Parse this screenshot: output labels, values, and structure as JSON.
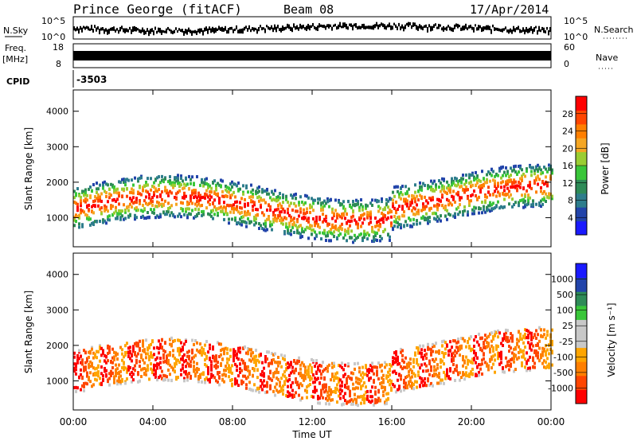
{
  "header": {
    "radar": "Prince George (fitACF)",
    "beam": "Beam 08",
    "date": "17/Apr/2014"
  },
  "summary_panels": {
    "nsky_label": "N.Sky",
    "nsky_ticks": [
      "10^5",
      "10^0"
    ],
    "nsearch_label": "N.Search",
    "nsearch_ticks": [
      "10^5",
      "10^0"
    ],
    "freq_label_1": "Freq.",
    "freq_label_2": "[MHz]",
    "freq_ticks": [
      "18",
      "8"
    ],
    "nave_label": "Nave",
    "nave_ticks": [
      "60",
      "0"
    ],
    "cpid_label": "CPID",
    "cpid_value": "-3503"
  },
  "colors": {
    "power": [
      "#1a1aff",
      "#2244aa",
      "#2e7d8c",
      "#2e8b57",
      "#39c639",
      "#9acd32",
      "#f5a623",
      "#ff7f00",
      "#ff4500",
      "#ff0000"
    ],
    "velocity": [
      "#ff0000",
      "#ff4500",
      "#ff7f00",
      "#ffa500",
      "#c8c8c8",
      "#c8c8c8",
      "#39c639",
      "#2e8b57",
      "#2244aa",
      "#1a1aff"
    ],
    "ground_scatter": "#c8c8c8"
  },
  "chart_data": [
    {
      "type": "heatmap",
      "panel": "power",
      "ylabel": "Slant Range [km]",
      "yticks": [
        "1000",
        "2000",
        "3000",
        "4000"
      ],
      "ylim": [
        180,
        4600
      ],
      "xlim_hours": [
        0,
        24
      ],
      "xticks": [
        "00:00",
        "04:00",
        "08:00",
        "12:00",
        "16:00",
        "20:00",
        "00:00"
      ],
      "colorbar_label": "Power [dB]",
      "colorbar_ticks": [
        "28",
        "24",
        "20",
        "16",
        "12",
        "8",
        "4"
      ],
      "colorbar_range": [
        0,
        30
      ]
    },
    {
      "type": "heatmap",
      "panel": "velocity",
      "ylabel": "Slant Range [km]",
      "yticks": [
        "1000",
        "2000",
        "3000",
        "4000"
      ],
      "ylim": [
        180,
        4600
      ],
      "xlim_hours": [
        0,
        24
      ],
      "xticks": [
        "00:00",
        "04:00",
        "08:00",
        "12:00",
        "16:00",
        "20:00",
        "00:00"
      ],
      "xlabel": "Time UT",
      "colorbar_label": "Velocity [m s⁻¹]",
      "colorbar_ticks": [
        "1000",
        "500",
        "100",
        "25",
        "-25",
        "-100",
        "-500",
        "-1000"
      ],
      "colorbar_range": [
        -1000,
        1000
      ]
    }
  ]
}
